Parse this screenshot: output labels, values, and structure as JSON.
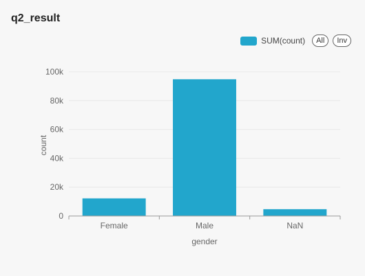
{
  "title": "q2_result",
  "legend": {
    "series_label": "SUM(count)",
    "all_label": "All",
    "inv_label": "Inv"
  },
  "colors": {
    "bar": "#22a6cc",
    "grid": "#e8e8e8",
    "axis": "#999999"
  },
  "chart_data": {
    "type": "bar",
    "categories": [
      "Female",
      "Male",
      "NaN"
    ],
    "series": [
      {
        "name": "SUM(count)",
        "values": [
          12200,
          94800,
          4700
        ]
      }
    ],
    "xlabel": "gender",
    "ylabel": "count",
    "ylim": [
      0,
      100000
    ],
    "yticks": [
      0,
      20000,
      40000,
      60000,
      80000,
      100000
    ],
    "ytick_labels": [
      "0",
      "20k",
      "40k",
      "60k",
      "80k",
      "100k"
    ],
    "grid": true,
    "legend_position": "top-right"
  }
}
